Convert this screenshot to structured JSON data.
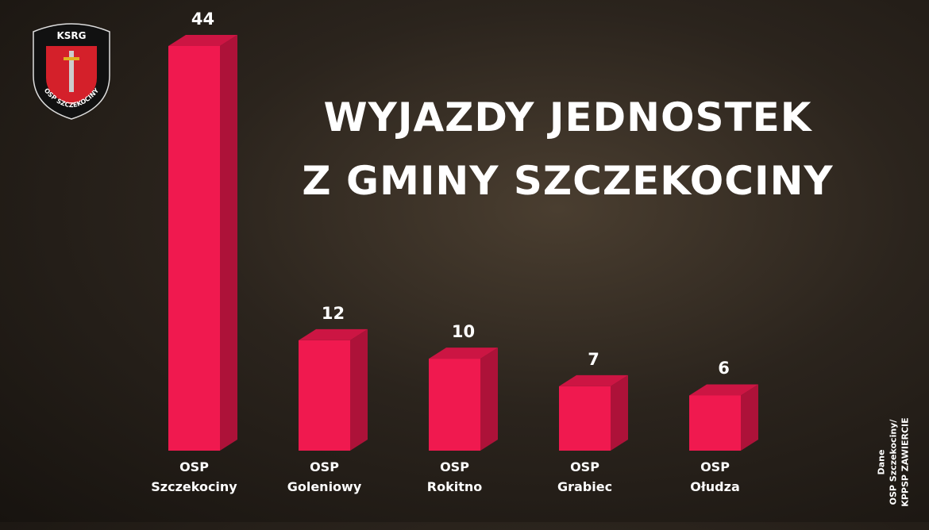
{
  "chart_data": {
    "type": "bar3d",
    "title": "WYJAZDY JEDNOSTEK\nZ GMINY SZCZEKOCINY",
    "categories": [
      "OSP\nSzczekociny",
      "OSP\nGoleniowy",
      "OSP\nRokitno",
      "OSP\nGrabiec",
      "OSP\nOłudza"
    ],
    "values": [
      44,
      12,
      10,
      7,
      6
    ],
    "color": "#f0194f",
    "source": "Dane\nOSP Szczekociny/\nKPPSP ZAWIERCIE"
  },
  "logo": {
    "top": "KSRG",
    "bottom": "OSP SZCZEKOCINY"
  }
}
